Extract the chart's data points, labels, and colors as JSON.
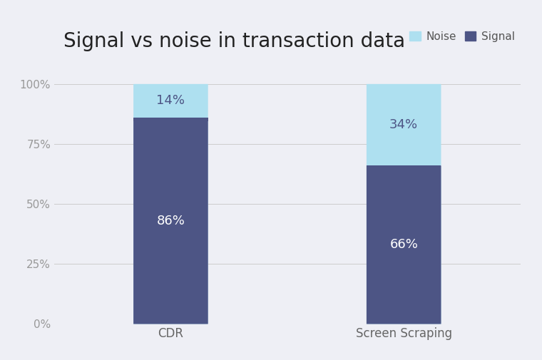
{
  "title": "Signal vs noise in transaction data",
  "categories": [
    "CDR",
    "Screen Scraping"
  ],
  "signal_values": [
    86,
    66
  ],
  "noise_values": [
    14,
    34
  ],
  "signal_color": "#4d5585",
  "noise_color": "#aee0f0",
  "signal_label": "Signal",
  "noise_label": "Noise",
  "signal_text_color": "#ffffff",
  "noise_text_color": "#4d5585",
  "background_color": "#eeeff5",
  "ylim": [
    0,
    108
  ],
  "yticks": [
    0,
    25,
    50,
    75,
    100
  ],
  "ytick_labels": [
    "0%",
    "25%",
    "50%",
    "75%",
    "100%"
  ],
  "title_fontsize": 20,
  "tick_fontsize": 11,
  "xlabel_fontsize": 12,
  "bar_width": 0.32,
  "bar_positions": [
    1,
    2
  ],
  "xlim": [
    0.5,
    2.5
  ]
}
